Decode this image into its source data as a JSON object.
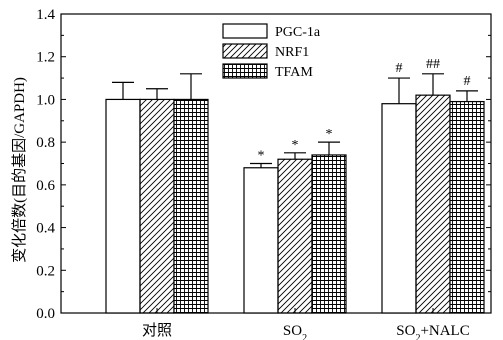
{
  "chart_data": {
    "type": "bar",
    "title": "",
    "xlabel": "",
    "ylabel": "变化倍数(目的基因/GAPDH)",
    "ylim": [
      0,
      1.4
    ],
    "yticks": [
      "0.0",
      "0.2",
      "0.4",
      "0.6",
      "0.8",
      "1.0",
      "1.2",
      "1.4"
    ],
    "grid": false,
    "legend_position": "top-center",
    "categories": [
      {
        "label": "对照",
        "sub": "",
        "rest": ""
      },
      {
        "label": "SO",
        "sub": "2",
        "rest": ""
      },
      {
        "label": "SO",
        "sub": "2",
        "rest": "+NALC"
      }
    ],
    "series": [
      {
        "name": "PGC-1a",
        "pattern": "open",
        "values": [
          1.0,
          0.68,
          0.98
        ],
        "errors": [
          0.08,
          0.02,
          0.12
        ],
        "annotations": [
          "",
          "*",
          "#"
        ]
      },
      {
        "name": "NRF1",
        "pattern": "hatch",
        "values": [
          1.0,
          0.72,
          1.02
        ],
        "errors": [
          0.05,
          0.03,
          0.1
        ],
        "annotations": [
          "",
          "*",
          "##"
        ]
      },
      {
        "name": "TFAM",
        "pattern": "crosshatch",
        "values": [
          1.0,
          0.74,
          0.99
        ],
        "errors": [
          0.12,
          0.06,
          0.05
        ],
        "annotations": [
          "",
          "*",
          "#"
        ]
      }
    ]
  }
}
